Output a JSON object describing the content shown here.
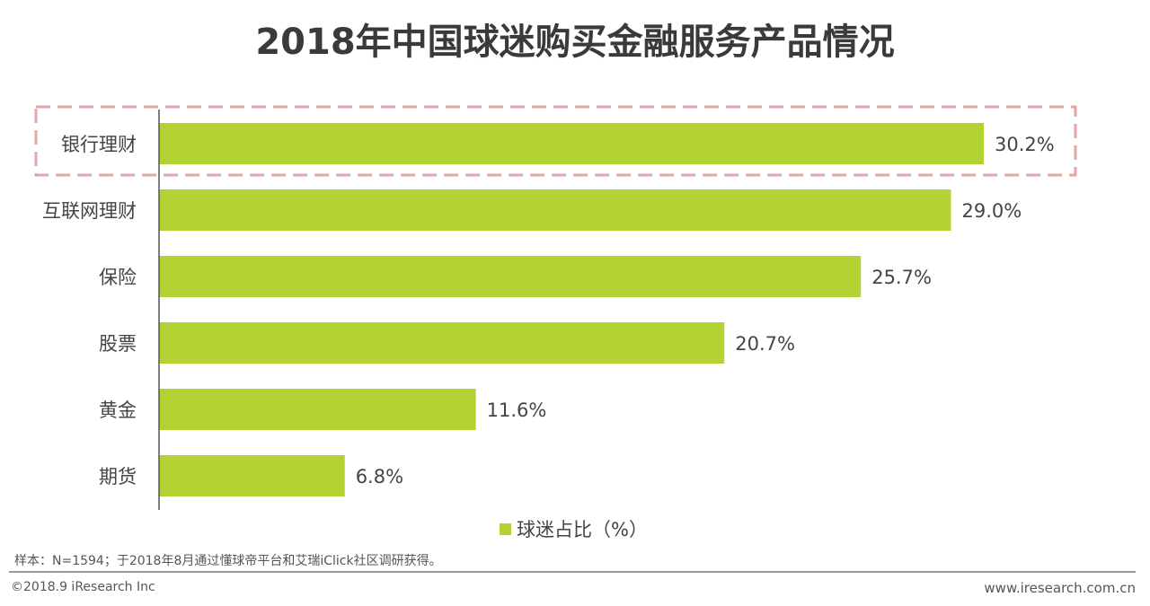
{
  "chart_data": {
    "type": "bar",
    "orientation": "horizontal",
    "title": "2018年中国球迷购买金融服务产品情况",
    "categories": [
      "银行理财",
      "互联网理财",
      "保险",
      "股票",
      "黄金",
      "期货"
    ],
    "series": [
      {
        "name": "球迷占比（%）",
        "values": [
          30.2,
          29.0,
          25.7,
          20.7,
          11.6,
          6.8
        ],
        "color": "#b3d334"
      }
    ],
    "data_labels": [
      "30.2%",
      "29.0%",
      "25.7%",
      "20.7%",
      "11.6%",
      "6.8%"
    ],
    "highlighted_category": "银行理财",
    "highlight_color": "#e3a5a5",
    "legend_position": "bottom",
    "grid": false,
    "xlim": [
      0,
      30.2
    ]
  },
  "footer": {
    "note": "样本：N=1594；于2018年8月通过懂球帝平台和艾瑞iClick社区调研获得。",
    "copyright": "©2018.9 iResearch Inc",
    "website": "www.iresearch.com.cn"
  }
}
